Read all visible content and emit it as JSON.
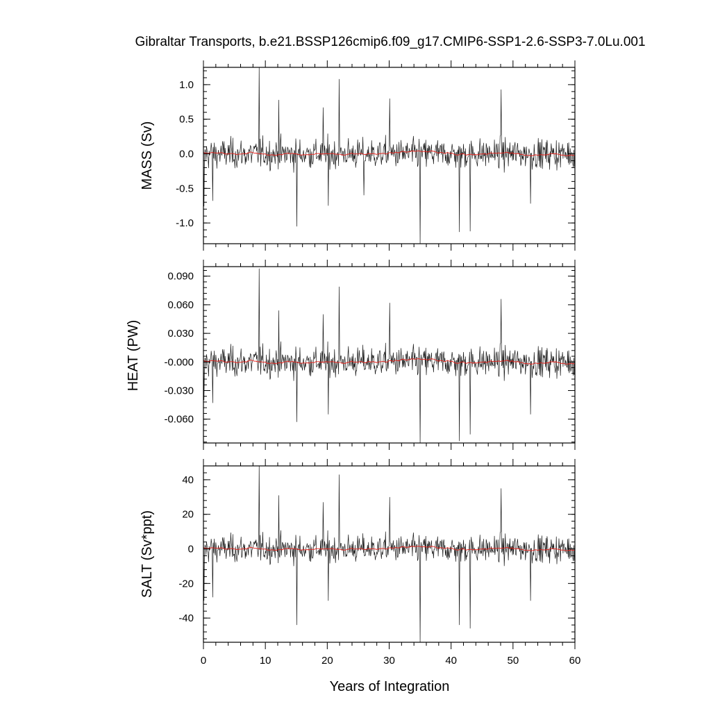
{
  "colors": {
    "raw_series": "#1a1a1a",
    "smoothed_series": "#e8201a",
    "frame": "#000000"
  },
  "chart_data": [
    {
      "type": "line",
      "title": "Gibraltar Transports, b.e21.BSSP126cmip6.f09_g17.CMIP6-SSP1-2.6-SSP3-7.0Lu.001",
      "xlabel": "",
      "ylabel": "MASS (Sv)",
      "xlim": [
        0,
        60
      ],
      "ylim": [
        -1.3,
        1.25
      ],
      "yticks": [
        -1.0,
        -0.5,
        0.0,
        0.5,
        1.0
      ],
      "ytick_labels": [
        "-1.0",
        "-0.5",
        "0.0",
        "0.5",
        "1.0"
      ],
      "xticks": [
        0,
        10,
        20,
        30,
        40,
        50,
        60
      ],
      "xtick_labels": [
        "",
        "",
        "",
        "",
        "",
        "",
        ""
      ],
      "noise_sd": 0.15,
      "smooth_amp": 0.05,
      "spikes": [
        {
          "x": 0.1,
          "y": -0.76
        },
        {
          "x": 1.5,
          "y": -0.68
        },
        {
          "x": 9.0,
          "y": 1.25
        },
        {
          "x": 12.2,
          "y": 0.78
        },
        {
          "x": 15.1,
          "y": -1.05
        },
        {
          "x": 19.3,
          "y": 0.67
        },
        {
          "x": 20.2,
          "y": -0.75
        },
        {
          "x": 21.9,
          "y": 1.08
        },
        {
          "x": 25.9,
          "y": -0.6
        },
        {
          "x": 30.1,
          "y": 0.8
        },
        {
          "x": 35.0,
          "y": -1.3
        },
        {
          "x": 41.3,
          "y": -1.13
        },
        {
          "x": 43.1,
          "y": -1.12
        },
        {
          "x": 48.1,
          "y": 0.93
        },
        {
          "x": 52.8,
          "y": -0.72
        }
      ],
      "smoothed_trend": "red running mean near zero"
    },
    {
      "type": "line",
      "xlabel": "",
      "ylabel": "HEAT (PW)",
      "xlim": [
        0,
        60
      ],
      "ylim": [
        -0.085,
        0.1
      ],
      "yticks": [
        -0.06,
        -0.03,
        0.0,
        0.03,
        0.06,
        0.09
      ],
      "ytick_labels": [
        "-0.060",
        "-0.030",
        "-0.000",
        "0.030",
        "0.060",
        "0.090"
      ],
      "xticks": [
        0,
        10,
        20,
        30,
        40,
        50,
        60
      ],
      "xtick_labels": [
        "",
        "",
        "",
        "",
        "",
        "",
        ""
      ],
      "noise_sd": 0.011,
      "smooth_amp": 0.004,
      "spikes": [
        {
          "x": 0.1,
          "y": -0.04
        },
        {
          "x": 1.5,
          "y": -0.043
        },
        {
          "x": 9.0,
          "y": 0.098
        },
        {
          "x": 12.2,
          "y": 0.054
        },
        {
          "x": 15.1,
          "y": -0.063
        },
        {
          "x": 19.3,
          "y": 0.05
        },
        {
          "x": 20.2,
          "y": -0.055
        },
        {
          "x": 21.9,
          "y": 0.079
        },
        {
          "x": 30.1,
          "y": 0.062
        },
        {
          "x": 35.0,
          "y": -0.085
        },
        {
          "x": 41.3,
          "y": -0.083
        },
        {
          "x": 43.1,
          "y": -0.076
        },
        {
          "x": 48.1,
          "y": 0.066
        },
        {
          "x": 52.8,
          "y": -0.055
        }
      ],
      "smoothed_trend": "red running mean near zero"
    },
    {
      "type": "line",
      "xlabel": "Years of Integration",
      "ylabel": "SALT (Sv*ppt)",
      "xlim": [
        0,
        60
      ],
      "ylim": [
        -54,
        48
      ],
      "yticks": [
        -40,
        -20,
        0,
        20,
        40
      ],
      "ytick_labels": [
        "-40",
        "-20",
        "0",
        "20",
        "40"
      ],
      "xticks": [
        0,
        10,
        20,
        30,
        40,
        50,
        60
      ],
      "xtick_labels": [
        "0",
        "10",
        "20",
        "30",
        "40",
        "50",
        "60"
      ],
      "noise_sd": 5.5,
      "smooth_amp": 1.8,
      "spikes": [
        {
          "x": 0.1,
          "y": -30
        },
        {
          "x": 1.5,
          "y": -28
        },
        {
          "x": 9.0,
          "y": 48
        },
        {
          "x": 12.2,
          "y": 31
        },
        {
          "x": 15.1,
          "y": -44
        },
        {
          "x": 19.3,
          "y": 27
        },
        {
          "x": 20.2,
          "y": -30
        },
        {
          "x": 21.9,
          "y": 43
        },
        {
          "x": 30.1,
          "y": 30
        },
        {
          "x": 35.0,
          "y": -54
        },
        {
          "x": 41.3,
          "y": -44
        },
        {
          "x": 43.1,
          "y": -46
        },
        {
          "x": 48.1,
          "y": 35
        },
        {
          "x": 52.8,
          "y": -30
        }
      ],
      "smoothed_trend": "red running mean near zero"
    }
  ]
}
